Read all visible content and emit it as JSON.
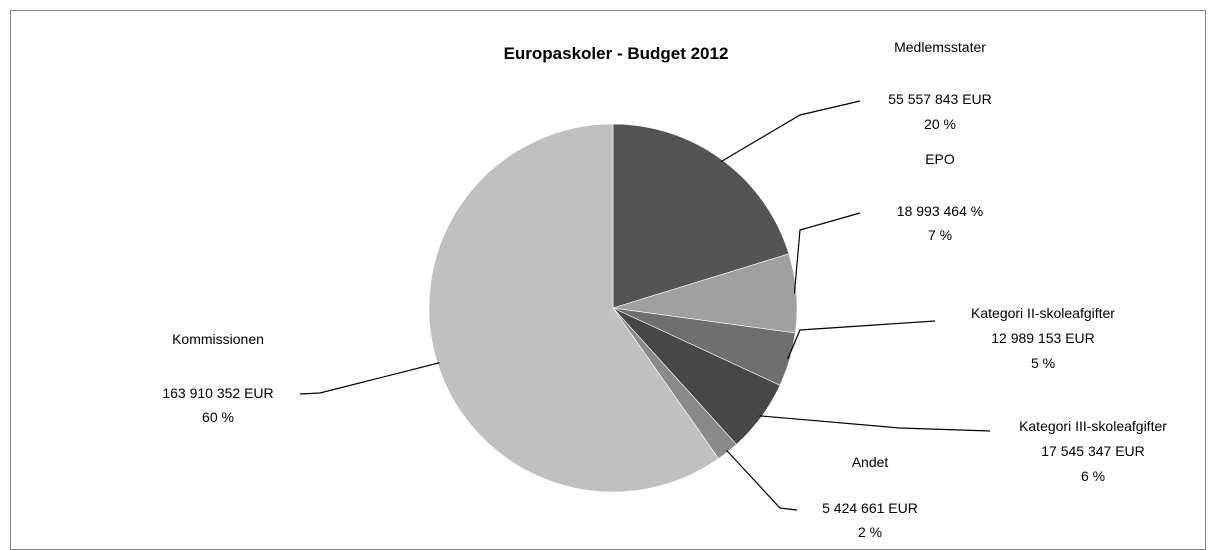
{
  "chart_data": {
    "type": "pie",
    "title": "Europaskoler - Budget 2012",
    "slices": [
      {
        "category": "Medlemsstater",
        "value_label": "55 557 843 EUR",
        "percent_label": "20 %",
        "value": 55557843,
        "percent": 20,
        "color": "#545454"
      },
      {
        "category": "EPO",
        "value_label": "18 993 464 %",
        "percent_label": "7 %",
        "value": 18993464,
        "percent": 7,
        "color": "#a0a0a0"
      },
      {
        "category": "Kategori II-skoleafgifter",
        "value_label": "12 989 153 EUR",
        "percent_label": "5 %",
        "value": 12989153,
        "percent": 5,
        "color": "#6f6f6f"
      },
      {
        "category": "Kategori III-skoleafgifter",
        "value_label": "17 545 347 EUR",
        "percent_label": "6 %",
        "value": 17545347,
        "percent": 6,
        "color": "#474747"
      },
      {
        "category": "Andet",
        "value_label": "5 424 661 EUR",
        "percent_label": "2 %",
        "value": 5424661,
        "percent": 2,
        "color": "#8a8a8a"
      },
      {
        "category": "Kommissionen",
        "value_label": "163 910 352 EUR",
        "percent_label": "60 %",
        "value": 163910352,
        "percent": 60,
        "color": "#c0c0c0"
      }
    ]
  }
}
